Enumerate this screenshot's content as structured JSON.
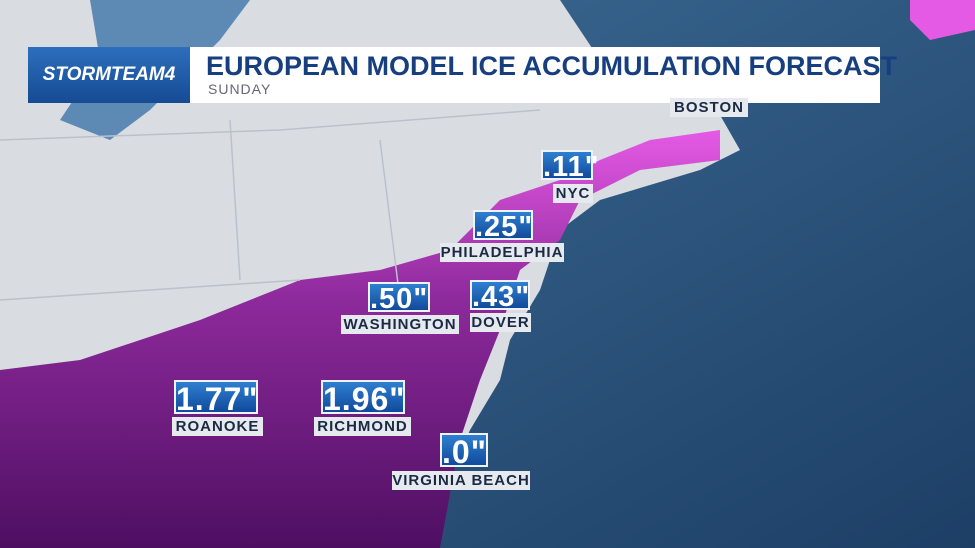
{
  "header": {
    "logo": "STORMTEAM4",
    "title": "EUROPEAN MODEL ICE ACCUMULATION FORECAST",
    "subtitle": "SUNDAY"
  },
  "cities": [
    {
      "name": "BOSTON"
    },
    {
      "name": "NYC",
      "value": ".11\""
    },
    {
      "name": "PHILADELPHIA",
      "value": ".25\""
    },
    {
      "name": "WASHINGTON",
      "value": ".50\""
    },
    {
      "name": "DOVER",
      "value": ".43\""
    },
    {
      "name": "ROANOKE",
      "value": "1.77\""
    },
    {
      "name": "RICHMOND",
      "value": "1.96\""
    },
    {
      "name": "VIRGINIA BEACH",
      "value": ".0\""
    }
  ]
}
